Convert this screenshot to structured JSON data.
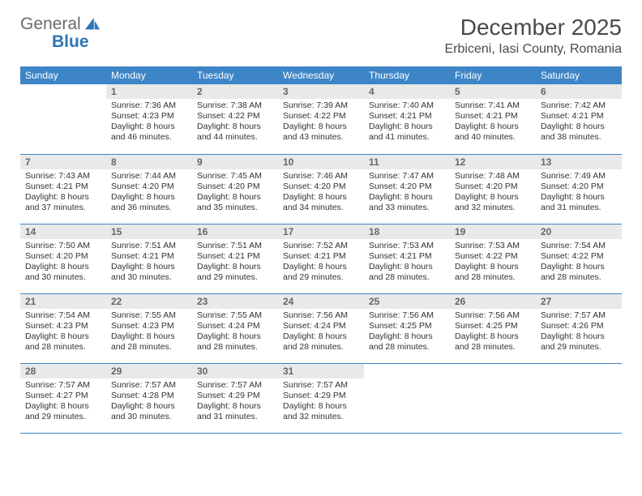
{
  "logo": {
    "word1": "General",
    "word2": "Blue"
  },
  "title": "December 2025",
  "location": "Erbiceni, Iasi County, Romania",
  "colors": {
    "header_bg": "#3d85c6",
    "header_text": "#ffffff",
    "daynum_bg": "#e9e9e9",
    "daynum_text": "#666666",
    "body_text": "#333333",
    "rule": "#3d85c6",
    "logo_gray": "#6a6a6a",
    "logo_blue": "#2e75b6",
    "page_bg": "#ffffff"
  },
  "weekdays": [
    "Sunday",
    "Monday",
    "Tuesday",
    "Wednesday",
    "Thursday",
    "Friday",
    "Saturday"
  ],
  "weeks": [
    [
      {
        "n": "",
        "sr": "",
        "ss": "",
        "dl": ""
      },
      {
        "n": "1",
        "sr": "Sunrise: 7:36 AM",
        "ss": "Sunset: 4:23 PM",
        "dl": "Daylight: 8 hours and 46 minutes."
      },
      {
        "n": "2",
        "sr": "Sunrise: 7:38 AM",
        "ss": "Sunset: 4:22 PM",
        "dl": "Daylight: 8 hours and 44 minutes."
      },
      {
        "n": "3",
        "sr": "Sunrise: 7:39 AM",
        "ss": "Sunset: 4:22 PM",
        "dl": "Daylight: 8 hours and 43 minutes."
      },
      {
        "n": "4",
        "sr": "Sunrise: 7:40 AM",
        "ss": "Sunset: 4:21 PM",
        "dl": "Daylight: 8 hours and 41 minutes."
      },
      {
        "n": "5",
        "sr": "Sunrise: 7:41 AM",
        "ss": "Sunset: 4:21 PM",
        "dl": "Daylight: 8 hours and 40 minutes."
      },
      {
        "n": "6",
        "sr": "Sunrise: 7:42 AM",
        "ss": "Sunset: 4:21 PM",
        "dl": "Daylight: 8 hours and 38 minutes."
      }
    ],
    [
      {
        "n": "7",
        "sr": "Sunrise: 7:43 AM",
        "ss": "Sunset: 4:21 PM",
        "dl": "Daylight: 8 hours and 37 minutes."
      },
      {
        "n": "8",
        "sr": "Sunrise: 7:44 AM",
        "ss": "Sunset: 4:20 PM",
        "dl": "Daylight: 8 hours and 36 minutes."
      },
      {
        "n": "9",
        "sr": "Sunrise: 7:45 AM",
        "ss": "Sunset: 4:20 PM",
        "dl": "Daylight: 8 hours and 35 minutes."
      },
      {
        "n": "10",
        "sr": "Sunrise: 7:46 AM",
        "ss": "Sunset: 4:20 PM",
        "dl": "Daylight: 8 hours and 34 minutes."
      },
      {
        "n": "11",
        "sr": "Sunrise: 7:47 AM",
        "ss": "Sunset: 4:20 PM",
        "dl": "Daylight: 8 hours and 33 minutes."
      },
      {
        "n": "12",
        "sr": "Sunrise: 7:48 AM",
        "ss": "Sunset: 4:20 PM",
        "dl": "Daylight: 8 hours and 32 minutes."
      },
      {
        "n": "13",
        "sr": "Sunrise: 7:49 AM",
        "ss": "Sunset: 4:20 PM",
        "dl": "Daylight: 8 hours and 31 minutes."
      }
    ],
    [
      {
        "n": "14",
        "sr": "Sunrise: 7:50 AM",
        "ss": "Sunset: 4:20 PM",
        "dl": "Daylight: 8 hours and 30 minutes."
      },
      {
        "n": "15",
        "sr": "Sunrise: 7:51 AM",
        "ss": "Sunset: 4:21 PM",
        "dl": "Daylight: 8 hours and 30 minutes."
      },
      {
        "n": "16",
        "sr": "Sunrise: 7:51 AM",
        "ss": "Sunset: 4:21 PM",
        "dl": "Daylight: 8 hours and 29 minutes."
      },
      {
        "n": "17",
        "sr": "Sunrise: 7:52 AM",
        "ss": "Sunset: 4:21 PM",
        "dl": "Daylight: 8 hours and 29 minutes."
      },
      {
        "n": "18",
        "sr": "Sunrise: 7:53 AM",
        "ss": "Sunset: 4:21 PM",
        "dl": "Daylight: 8 hours and 28 minutes."
      },
      {
        "n": "19",
        "sr": "Sunrise: 7:53 AM",
        "ss": "Sunset: 4:22 PM",
        "dl": "Daylight: 8 hours and 28 minutes."
      },
      {
        "n": "20",
        "sr": "Sunrise: 7:54 AM",
        "ss": "Sunset: 4:22 PM",
        "dl": "Daylight: 8 hours and 28 minutes."
      }
    ],
    [
      {
        "n": "21",
        "sr": "Sunrise: 7:54 AM",
        "ss": "Sunset: 4:23 PM",
        "dl": "Daylight: 8 hours and 28 minutes."
      },
      {
        "n": "22",
        "sr": "Sunrise: 7:55 AM",
        "ss": "Sunset: 4:23 PM",
        "dl": "Daylight: 8 hours and 28 minutes."
      },
      {
        "n": "23",
        "sr": "Sunrise: 7:55 AM",
        "ss": "Sunset: 4:24 PM",
        "dl": "Daylight: 8 hours and 28 minutes."
      },
      {
        "n": "24",
        "sr": "Sunrise: 7:56 AM",
        "ss": "Sunset: 4:24 PM",
        "dl": "Daylight: 8 hours and 28 minutes."
      },
      {
        "n": "25",
        "sr": "Sunrise: 7:56 AM",
        "ss": "Sunset: 4:25 PM",
        "dl": "Daylight: 8 hours and 28 minutes."
      },
      {
        "n": "26",
        "sr": "Sunrise: 7:56 AM",
        "ss": "Sunset: 4:25 PM",
        "dl": "Daylight: 8 hours and 28 minutes."
      },
      {
        "n": "27",
        "sr": "Sunrise: 7:57 AM",
        "ss": "Sunset: 4:26 PM",
        "dl": "Daylight: 8 hours and 29 minutes."
      }
    ],
    [
      {
        "n": "28",
        "sr": "Sunrise: 7:57 AM",
        "ss": "Sunset: 4:27 PM",
        "dl": "Daylight: 8 hours and 29 minutes."
      },
      {
        "n": "29",
        "sr": "Sunrise: 7:57 AM",
        "ss": "Sunset: 4:28 PM",
        "dl": "Daylight: 8 hours and 30 minutes."
      },
      {
        "n": "30",
        "sr": "Sunrise: 7:57 AM",
        "ss": "Sunset: 4:29 PM",
        "dl": "Daylight: 8 hours and 31 minutes."
      },
      {
        "n": "31",
        "sr": "Sunrise: 7:57 AM",
        "ss": "Sunset: 4:29 PM",
        "dl": "Daylight: 8 hours and 32 minutes."
      },
      {
        "n": "",
        "sr": "",
        "ss": "",
        "dl": ""
      },
      {
        "n": "",
        "sr": "",
        "ss": "",
        "dl": ""
      },
      {
        "n": "",
        "sr": "",
        "ss": "",
        "dl": ""
      }
    ]
  ]
}
